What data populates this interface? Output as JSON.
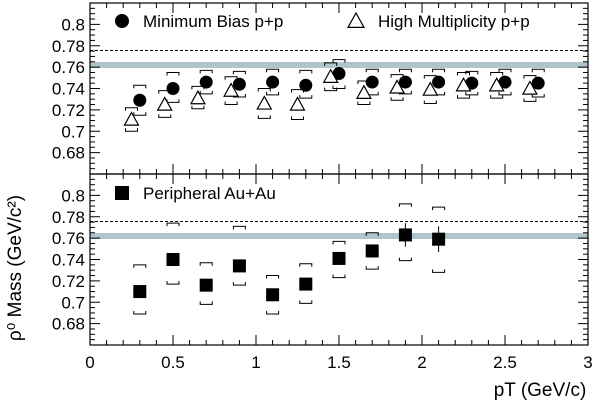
{
  "figure": {
    "ylabel": "ρ⁰ Mass (GeV/c²)",
    "xlabel": "pT (GeV/c)"
  },
  "chart_data": [
    {
      "type": "scatter",
      "panel": "top",
      "xlim": [
        0,
        3
      ],
      "ylim": [
        0.66,
        0.82
      ],
      "yticks": [
        "0.68",
        "0.7",
        "0.72",
        "0.74",
        "0.76",
        "0.78",
        "0.8"
      ],
      "reference_lines": [
        {
          "y": 0.7755,
          "style": "dashed"
        },
        {
          "y": 0.762,
          "style": "band",
          "color": "#b0c4cc"
        }
      ],
      "series": [
        {
          "name": "Minimum Bias p+p",
          "marker": "filled-circle",
          "x": [
            0.3,
            0.5,
            0.7,
            0.9,
            1.1,
            1.3,
            1.5,
            1.7,
            1.9,
            2.1,
            2.3,
            2.5,
            2.7
          ],
          "y": [
            0.729,
            0.74,
            0.746,
            0.744,
            0.746,
            0.743,
            0.754,
            0.746,
            0.746,
            0.746,
            0.745,
            0.746,
            0.745
          ],
          "sys_low": [
            0.715,
            0.727,
            0.735,
            0.732,
            0.734,
            0.731,
            0.74,
            0.734,
            0.735,
            0.734,
            0.734,
            0.734,
            0.732
          ],
          "sys_high": [
            0.743,
            0.755,
            0.757,
            0.756,
            0.758,
            0.757,
            0.767,
            0.758,
            0.758,
            0.758,
            0.756,
            0.758,
            0.758
          ]
        },
        {
          "name": "High Multiplicity p+p",
          "marker": "open-triangle",
          "x": [
            0.25,
            0.45,
            0.65,
            0.85,
            1.05,
            1.25,
            1.45,
            1.65,
            1.85,
            2.05,
            2.25,
            2.45,
            2.65
          ],
          "y": [
            0.711,
            0.725,
            0.731,
            0.738,
            0.726,
            0.725,
            0.751,
            0.736,
            0.741,
            0.739,
            0.743,
            0.743,
            0.74
          ],
          "sys_low": [
            0.7,
            0.713,
            0.721,
            0.725,
            0.712,
            0.711,
            0.738,
            0.725,
            0.729,
            0.726,
            0.731,
            0.731,
            0.728
          ],
          "sys_high": [
            0.722,
            0.738,
            0.742,
            0.751,
            0.74,
            0.739,
            0.764,
            0.747,
            0.753,
            0.752,
            0.755,
            0.755,
            0.752
          ]
        }
      ]
    },
    {
      "type": "scatter",
      "panel": "bottom",
      "xlabel": "pT (GeV/c)",
      "xlim": [
        0,
        3
      ],
      "ylim": [
        0.66,
        0.82
      ],
      "xticks": [
        "0",
        "0.5",
        "1",
        "1.5",
        "2",
        "2.5",
        "3"
      ],
      "yticks": [
        "0.68",
        "0.7",
        "0.72",
        "0.74",
        "0.76",
        "0.78",
        "0.8"
      ],
      "reference_lines": [
        {
          "y": 0.7755,
          "style": "dashed"
        },
        {
          "y": 0.762,
          "style": "band",
          "color": "#b0c4cc"
        }
      ],
      "series": [
        {
          "name": "Peripheral Au+Au",
          "marker": "filled-square",
          "x": [
            0.3,
            0.5,
            0.7,
            0.9,
            1.1,
            1.3,
            1.5,
            1.7,
            1.9,
            2.1
          ],
          "y": [
            0.71,
            0.74,
            0.716,
            0.734,
            0.707,
            0.717,
            0.741,
            0.748,
            0.763,
            0.759
          ],
          "err": [
            0.005,
            0.005,
            0.005,
            0.004,
            0.004,
            0.005,
            0.005,
            0.006,
            0.011,
            0.012
          ],
          "sys_low": [
            0.689,
            0.717,
            0.698,
            0.716,
            0.689,
            0.699,
            0.723,
            0.731,
            0.739,
            0.728
          ],
          "sys_high": [
            0.735,
            0.774,
            0.737,
            0.771,
            0.725,
            0.736,
            0.757,
            0.765,
            0.792,
            0.789
          ]
        }
      ]
    }
  ]
}
